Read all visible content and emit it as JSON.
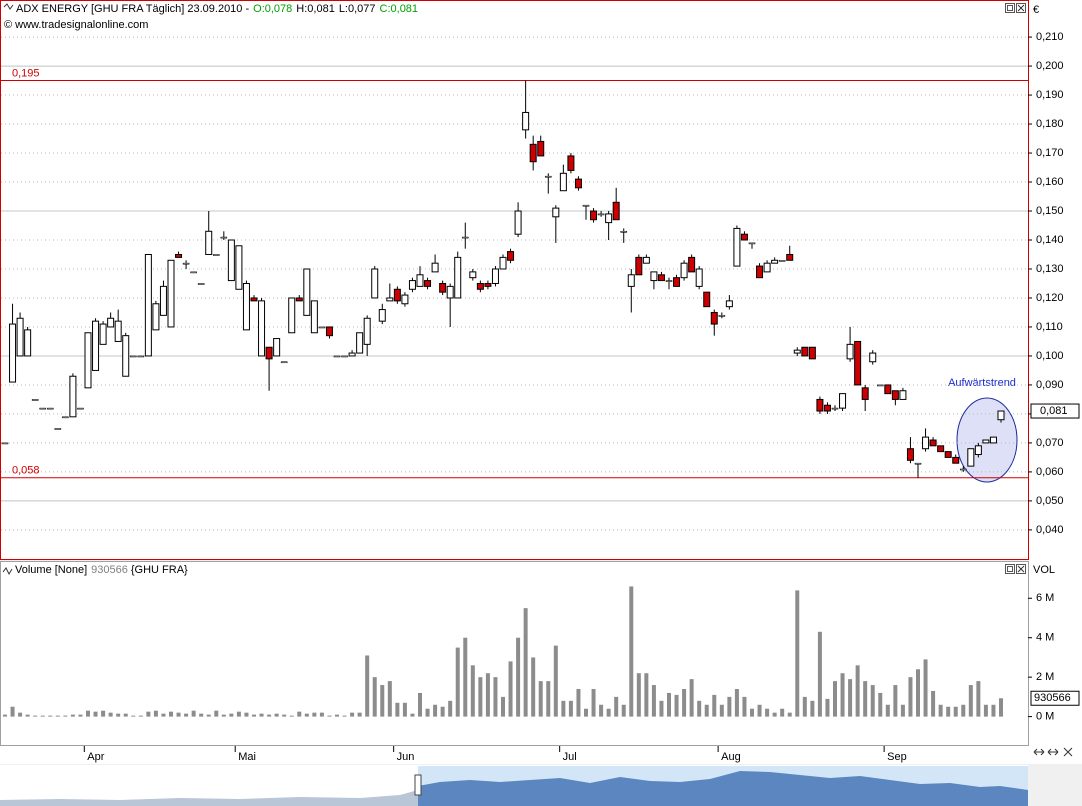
{
  "chart_data": [
    {
      "type": "candlestick",
      "title": "ADX ENERGY [GHU FRA  Täglich] 23.09.2010 -",
      "ohlc_labels": [
        {
          "text": "O:0,078",
          "color": "#00a000"
        },
        {
          "text": "H:0,081",
          "color": "#000000"
        },
        {
          "text": "L:0,077",
          "color": "#000000"
        },
        {
          "text": "C:0,081",
          "color": "#00a000"
        }
      ],
      "source": "© www.tradesignalonline.com",
      "currency": "€",
      "annotation": "Aufwärtstrend",
      "up_color": "#ffffff",
      "down_color": "#cc0000",
      "open": [
        0.07,
        0.091,
        0.1,
        0.1,
        0.085,
        0.082,
        0.082,
        0.075,
        0.079,
        0.079,
        0.082,
        0.089,
        0.095,
        0.104,
        0.11,
        0.105,
        0.093,
        0.1,
        0.1,
        0.1,
        0.109,
        0.114,
        0.11,
        0.135,
        0.132,
        0.129,
        0.125,
        0.135,
        0.135,
        0.141,
        0.126,
        0.123,
        0.109,
        0.12,
        0.1,
        0.103,
        0.1,
        0.098,
        0.108,
        0.12,
        0.114,
        0.108,
        0.11,
        0.11,
        0.1,
        0.1,
        0.1,
        0.101,
        0.104,
        0.12,
        0.112,
        0.119,
        0.123,
        0.118,
        0.123,
        0.124,
        0.126,
        0.129,
        0.125,
        0.12,
        0.12,
        0.141,
        0.127,
        0.125,
        0.125,
        0.125,
        0.13,
        0.136,
        0.142,
        0.178,
        0.173,
        0.174,
        0.162,
        0.148,
        0.157,
        0.169,
        0.161,
        0.152,
        0.15,
        0.149,
        0.146,
        0.153,
        0.143,
        0.124,
        0.134,
        0.132,
        0.126,
        0.128,
        0.126,
        0.127,
        0.127,
        0.134,
        0.124,
        0.122,
        0.115,
        0.114,
        0.117,
        0.131,
        0.142,
        0.139,
        0.131,
        0.129,
        0.132,
        0.133,
        0.135,
        0.101,
        0.103,
        0.103,
        0.085,
        0.083,
        0.082,
        0.082,
        0.099,
        0.105,
        0.089,
        0.098,
        0.09,
        0.09,
        0.088,
        0.085,
        0.068,
        0.063,
        0.068,
        0.071,
        0.069,
        0.067,
        0.065,
        0.061,
        0.062,
        0.066,
        0.07,
        0.07,
        0.078
      ],
      "high": [
        0.07,
        0.118,
        0.115,
        0.11,
        0.085,
        0.082,
        0.082,
        0.075,
        0.079,
        0.094,
        0.082,
        0.108,
        0.113,
        0.112,
        0.115,
        0.116,
        0.108,
        0.1,
        0.1,
        0.135,
        0.119,
        0.126,
        0.133,
        0.136,
        0.133,
        0.129,
        0.125,
        0.15,
        0.135,
        0.143,
        0.14,
        0.138,
        0.126,
        0.121,
        0.12,
        0.103,
        0.106,
        0.098,
        0.12,
        0.121,
        0.13,
        0.119,
        0.11,
        0.11,
        0.1,
        0.1,
        0.102,
        0.108,
        0.114,
        0.131,
        0.118,
        0.125,
        0.124,
        0.122,
        0.127,
        0.131,
        0.127,
        0.135,
        0.126,
        0.125,
        0.136,
        0.146,
        0.13,
        0.126,
        0.126,
        0.131,
        0.135,
        0.137,
        0.153,
        0.195,
        0.176,
        0.176,
        0.163,
        0.152,
        0.166,
        0.17,
        0.162,
        0.152,
        0.151,
        0.15,
        0.15,
        0.158,
        0.144,
        0.13,
        0.135,
        0.135,
        0.129,
        0.129,
        0.127,
        0.128,
        0.133,
        0.135,
        0.131,
        0.122,
        0.116,
        0.115,
        0.121,
        0.145,
        0.143,
        0.139,
        0.132,
        0.133,
        0.134,
        0.133,
        0.138,
        0.103,
        0.103,
        0.103,
        0.086,
        0.084,
        0.083,
        0.087,
        0.11,
        0.105,
        0.09,
        0.102,
        0.09,
        0.09,
        0.088,
        0.089,
        0.072,
        0.063,
        0.075,
        0.072,
        0.069,
        0.067,
        0.066,
        0.062,
        0.068,
        0.07,
        0.071,
        0.072,
        0.081
      ],
      "low": [
        0.07,
        0.091,
        0.1,
        0.1,
        0.085,
        0.082,
        0.082,
        0.075,
        0.079,
        0.079,
        0.082,
        0.089,
        0.095,
        0.104,
        0.11,
        0.105,
        0.093,
        0.1,
        0.1,
        0.1,
        0.109,
        0.114,
        0.11,
        0.134,
        0.13,
        0.129,
        0.125,
        0.135,
        0.135,
        0.14,
        0.126,
        0.123,
        0.109,
        0.119,
        0.1,
        0.088,
        0.1,
        0.098,
        0.108,
        0.119,
        0.114,
        0.108,
        0.11,
        0.106,
        0.1,
        0.1,
        0.1,
        0.101,
        0.1,
        0.12,
        0.111,
        0.119,
        0.118,
        0.117,
        0.122,
        0.124,
        0.123,
        0.129,
        0.121,
        0.11,
        0.12,
        0.137,
        0.126,
        0.122,
        0.123,
        0.124,
        0.13,
        0.132,
        0.141,
        0.175,
        0.164,
        0.169,
        0.156,
        0.139,
        0.157,
        0.163,
        0.157,
        0.147,
        0.146,
        0.148,
        0.14,
        0.147,
        0.139,
        0.115,
        0.128,
        0.132,
        0.123,
        0.126,
        0.123,
        0.124,
        0.126,
        0.129,
        0.123,
        0.117,
        0.107,
        0.113,
        0.116,
        0.131,
        0.14,
        0.137,
        0.127,
        0.129,
        0.132,
        0.133,
        0.133,
        0.1,
        0.1,
        0.099,
        0.08,
        0.08,
        0.081,
        0.081,
        0.098,
        0.09,
        0.081,
        0.097,
        0.09,
        0.087,
        0.083,
        0.085,
        0.063,
        0.058,
        0.067,
        0.069,
        0.067,
        0.065,
        0.063,
        0.06,
        0.062,
        0.065,
        0.07,
        0.07,
        0.077
      ],
      "close": [
        0.07,
        0.111,
        0.113,
        0.109,
        0.085,
        0.082,
        0.082,
        0.075,
        0.079,
        0.093,
        0.082,
        0.108,
        0.112,
        0.111,
        0.113,
        0.112,
        0.107,
        0.1,
        0.1,
        0.135,
        0.118,
        0.124,
        0.133,
        0.134,
        0.132,
        0.129,
        0.125,
        0.143,
        0.135,
        0.141,
        0.14,
        0.138,
        0.125,
        0.119,
        0.119,
        0.099,
        0.106,
        0.098,
        0.12,
        0.119,
        0.13,
        0.119,
        0.11,
        0.107,
        0.1,
        0.1,
        0.101,
        0.108,
        0.113,
        0.13,
        0.116,
        0.12,
        0.119,
        0.121,
        0.126,
        0.128,
        0.124,
        0.132,
        0.122,
        0.124,
        0.134,
        0.141,
        0.129,
        0.123,
        0.124,
        0.13,
        0.134,
        0.133,
        0.15,
        0.184,
        0.167,
        0.169,
        0.162,
        0.151,
        0.163,
        0.164,
        0.158,
        0.152,
        0.147,
        0.149,
        0.149,
        0.147,
        0.143,
        0.128,
        0.128,
        0.134,
        0.129,
        0.126,
        0.126,
        0.124,
        0.132,
        0.129,
        0.13,
        0.117,
        0.111,
        0.114,
        0.119,
        0.144,
        0.14,
        0.139,
        0.127,
        0.132,
        0.133,
        0.133,
        0.133,
        0.102,
        0.1,
        0.099,
        0.081,
        0.081,
        0.082,
        0.087,
        0.104,
        0.09,
        0.085,
        0.101,
        0.09,
        0.087,
        0.085,
        0.088,
        0.064,
        0.063,
        0.072,
        0.069,
        0.067,
        0.065,
        0.063,
        0.061,
        0.068,
        0.069,
        0.071,
        0.072,
        0.081
      ],
      "ylim": [
        0.0303,
        0.2221
      ],
      "yticks": [
        {
          "value": 0.04,
          "label": "0,040"
        },
        {
          "value": 0.05,
          "label": "0,050"
        },
        {
          "value": 0.06,
          "label": "0,060"
        },
        {
          "value": 0.07,
          "label": "0,070"
        },
        {
          "value": 0.08,
          "label": "0,080"
        },
        {
          "value": 0.09,
          "label": "0,090"
        },
        {
          "value": 0.1,
          "label": "0,100"
        },
        {
          "value": 0.11,
          "label": "0,110"
        },
        {
          "value": 0.12,
          "label": "0,120"
        },
        {
          "value": 0.13,
          "label": "0,130"
        },
        {
          "value": 0.14,
          "label": "0,140"
        },
        {
          "value": 0.15,
          "label": "0,150"
        },
        {
          "value": 0.16,
          "label": "0,160"
        },
        {
          "value": 0.17,
          "label": "0,170"
        },
        {
          "value": 0.18,
          "label": "0,180"
        },
        {
          "value": 0.19,
          "label": "0,190"
        },
        {
          "value": 0.2,
          "label": "0,200"
        },
        {
          "value": 0.21,
          "label": "0,210"
        }
      ],
      "grid": true,
      "major_gridlines": [
        0.05,
        0.1,
        0.15,
        0.2
      ],
      "hlines": [
        {
          "value": 0.195,
          "label": "0,195",
          "color": "#d00000"
        },
        {
          "value": 0.058,
          "label": "0,058",
          "color": "#d00000"
        }
      ],
      "last_price": {
        "value": 0.081,
        "label": "0,081"
      }
    },
    {
      "type": "bar",
      "title": "Volume [None]",
      "series_label": "{GHU FRA}",
      "axis_label": "VOL",
      "color": "#8c8c8c",
      "categories": [
        null,
        null,
        null,
        null,
        null,
        null,
        null,
        null,
        null,
        null,
        null,
        "Apr",
        null,
        null,
        null,
        null,
        null,
        null,
        null,
        null,
        null,
        null,
        null,
        null,
        null,
        null,
        null,
        null,
        null,
        null,
        null,
        "Mai",
        null,
        null,
        null,
        null,
        null,
        null,
        null,
        null,
        null,
        null,
        null,
        null,
        null,
        null,
        null,
        null,
        null,
        null,
        null,
        null,
        "Jun",
        null,
        null,
        null,
        null,
        null,
        null,
        null,
        null,
        null,
        null,
        null,
        null,
        null,
        null,
        null,
        null,
        null,
        null,
        null,
        null,
        null,
        "Jul",
        null,
        null,
        null,
        null,
        null,
        null,
        null,
        null,
        null,
        null,
        null,
        null,
        null,
        null,
        null,
        null,
        null,
        null,
        null,
        null,
        "Aug",
        null,
        null,
        null,
        null,
        null,
        null,
        null,
        null,
        null,
        null,
        null,
        null,
        null,
        null,
        null,
        null,
        null,
        null,
        null,
        null,
        null,
        "Sep",
        null,
        null,
        null,
        null,
        null,
        null,
        null,
        null,
        null,
        null,
        null,
        null,
        null,
        null,
        null
      ],
      "values": [
        100000,
        500000,
        200000,
        100000,
        50000,
        50000,
        50000,
        50000,
        50000,
        100000,
        100000,
        300000,
        250000,
        300000,
        200000,
        150000,
        150000,
        50000,
        50000,
        250000,
        300000,
        150000,
        250000,
        200000,
        150000,
        300000,
        150000,
        100000,
        300000,
        100000,
        150000,
        250000,
        200000,
        100000,
        150000,
        100000,
        150000,
        100000,
        50000,
        250000,
        150000,
        200000,
        200000,
        50000,
        100000,
        50000,
        200000,
        200000,
        3100000,
        2000000,
        1600000,
        1800000,
        700000,
        700000,
        150000,
        1200000,
        400000,
        600000,
        500000,
        800000,
        3500000,
        4000000,
        2600000,
        2000000,
        2200000,
        2000000,
        1000000,
        2800000,
        4000000,
        5500000,
        3000000,
        1800000,
        1800000,
        3600000,
        800000,
        800000,
        1400000,
        400000,
        1400000,
        600000,
        400000,
        1000000,
        600000,
        6600000,
        2200000,
        2200000,
        1600000,
        800000,
        1200000,
        1100000,
        1400000,
        1900000,
        800000,
        600000,
        1100000,
        600000,
        1000000,
        1400000,
        1000000,
        400000,
        600000,
        400000,
        200000,
        400000,
        200000,
        6400000,
        1000000,
        800000,
        4300000,
        900000,
        1800000,
        2200000,
        1900000,
        2600000,
        1800000,
        1600000,
        1200000,
        600000,
        1600000,
        600000,
        2000000,
        2400000,
        2900000,
        1300000,
        600000,
        500000,
        500000,
        600000,
        1600000,
        1800000,
        600000,
        600000,
        930566
      ],
      "ylim": [
        -1440000,
        7180000
      ],
      "yticks": [
        {
          "value": 0,
          "label": "0 M"
        },
        {
          "value": 2000000,
          "label": "2 M"
        },
        {
          "value": 4000000,
          "label": "4 M"
        },
        {
          "value": 6000000,
          "label": "6 M"
        }
      ]
    }
  ]
}
